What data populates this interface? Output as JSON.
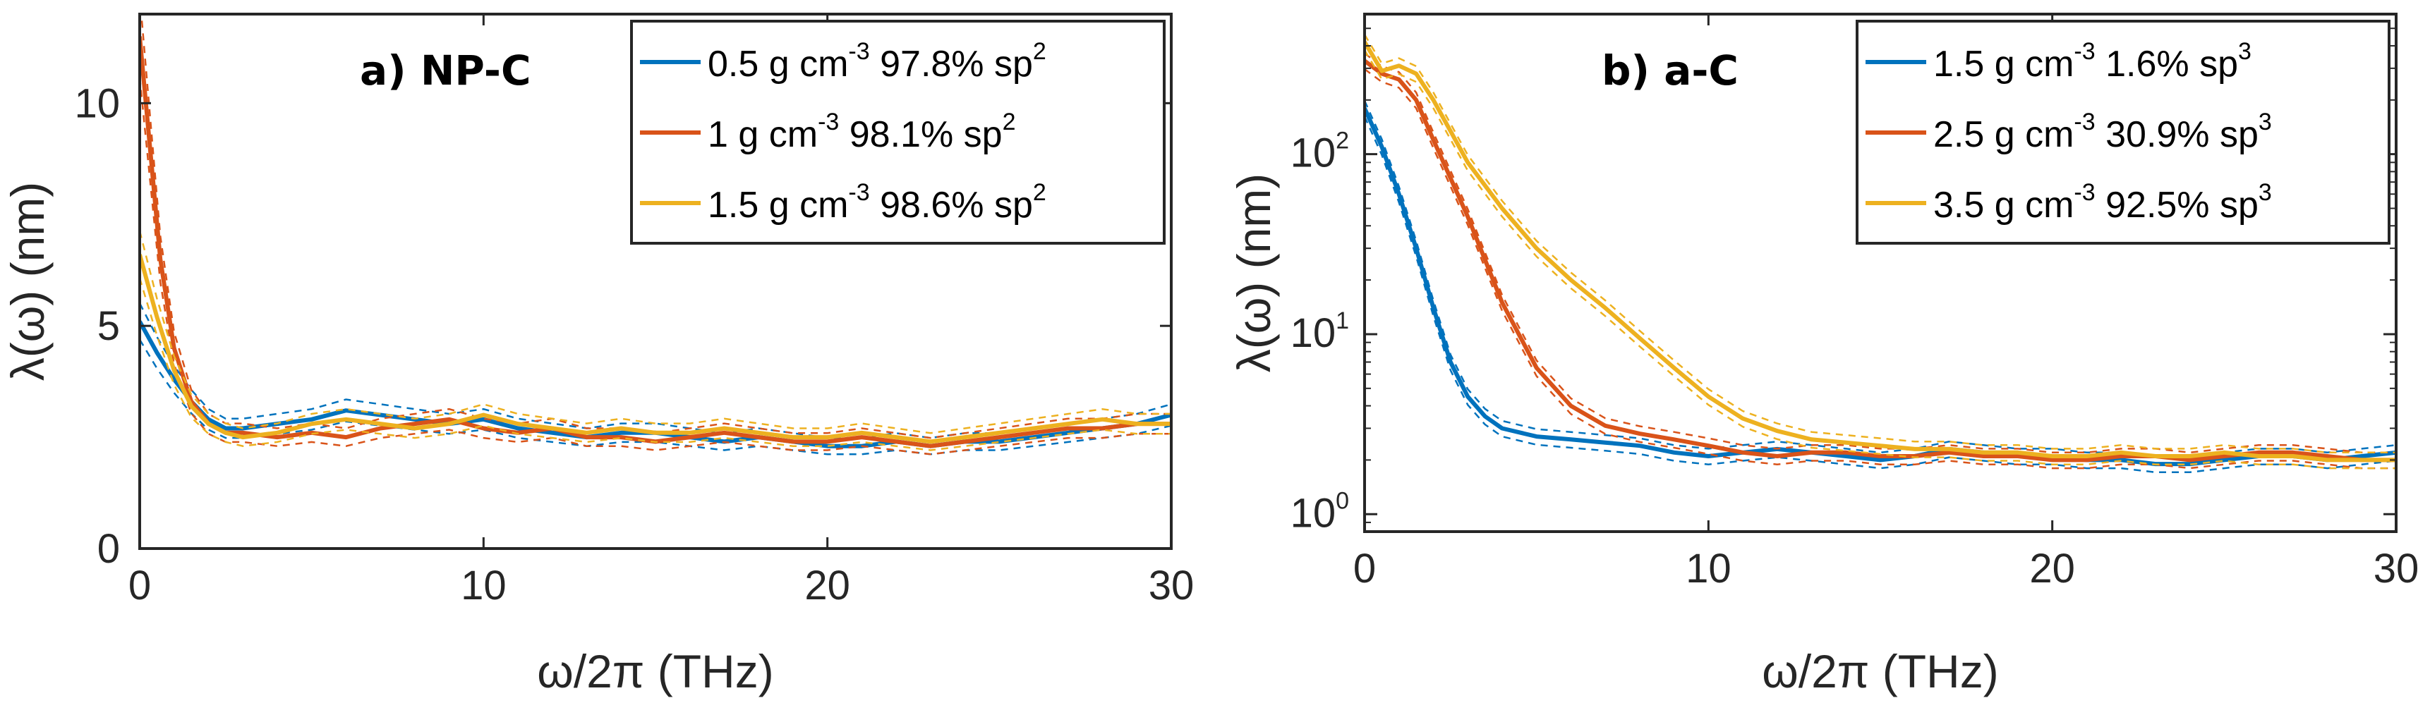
{
  "colors": {
    "blue": "#0072BD",
    "orange": "#D95319",
    "yellow": "#EDB120"
  },
  "chart_data": [
    {
      "type": "line",
      "title": "a) NP-C",
      "xlabel": "ω/2π (THz)",
      "ylabel": "λ(ω) (nm)",
      "xlim": [
        0,
        30
      ],
      "ylim": [
        0,
        12
      ],
      "yscale": "linear",
      "xticks": [
        "0",
        "10",
        "20",
        "30"
      ],
      "yticks": [
        "0",
        "5",
        "10"
      ],
      "legend": "top-right",
      "series": [
        {
          "name": "0.5 g cm-3 97.8% sp2",
          "label_main": "0.5 g cm",
          "label_sup": "-3",
          "label_rest": " 97.8% sp",
          "label_sup2": "2",
          "color": "#0072BD",
          "x": [
            0,
            0.5,
            1,
            1.5,
            2,
            2.5,
            3,
            4,
            5,
            6,
            7,
            8,
            9,
            10,
            11,
            12,
            13,
            14,
            15,
            16,
            17,
            18,
            19,
            20,
            21,
            22,
            23,
            24,
            25,
            26,
            27,
            28,
            29,
            30
          ],
          "y": [
            5.1,
            4.4,
            3.8,
            3.3,
            2.9,
            2.7,
            2.7,
            2.8,
            2.9,
            3.1,
            3.0,
            2.9,
            2.8,
            2.9,
            2.7,
            2.6,
            2.5,
            2.6,
            2.6,
            2.5,
            2.4,
            2.5,
            2.4,
            2.3,
            2.3,
            2.4,
            2.3,
            2.4,
            2.4,
            2.5,
            2.6,
            2.7,
            2.8,
            3.0
          ]
        },
        {
          "name": "1 g cm-3 98.1% sp2",
          "label_main": "1 g cm",
          "label_sup": "-3",
          "label_rest": " 98.1% sp",
          "label_sup2": "2",
          "color": "#D95319",
          "x": [
            0,
            0.3,
            0.6,
            1,
            1.5,
            2,
            2.5,
            3,
            4,
            5,
            6,
            7,
            8,
            9,
            10,
            11,
            12,
            13,
            14,
            15,
            16,
            17,
            18,
            19,
            20,
            21,
            22,
            23,
            24,
            25,
            26,
            27,
            28,
            29,
            30
          ],
          "y": [
            11.5,
            9.0,
            6.5,
            4.5,
            3.3,
            2.8,
            2.6,
            2.6,
            2.5,
            2.6,
            2.5,
            2.7,
            2.8,
            2.9,
            2.7,
            2.6,
            2.7,
            2.5,
            2.5,
            2.4,
            2.5,
            2.6,
            2.5,
            2.4,
            2.4,
            2.5,
            2.4,
            2.3,
            2.4,
            2.5,
            2.6,
            2.7,
            2.7,
            2.8,
            2.8
          ]
        },
        {
          "name": "1.5 g cm-3 98.6% sp2",
          "label_main": "1.5 g cm",
          "label_sup": "-3",
          "label_rest": " 98.6% sp",
          "label_sup2": "2",
          "color": "#EDB120",
          "x": [
            0,
            0.5,
            1,
            1.5,
            2,
            2.5,
            3,
            4,
            5,
            6,
            7,
            8,
            9,
            10,
            11,
            12,
            13,
            14,
            15,
            16,
            17,
            18,
            19,
            20,
            21,
            22,
            23,
            24,
            25,
            26,
            27,
            28,
            29,
            30
          ],
          "y": [
            6.6,
            5.2,
            4.0,
            3.2,
            2.8,
            2.6,
            2.5,
            2.6,
            2.8,
            2.9,
            2.8,
            2.7,
            2.8,
            3.0,
            2.8,
            2.7,
            2.6,
            2.7,
            2.6,
            2.6,
            2.7,
            2.6,
            2.5,
            2.5,
            2.6,
            2.5,
            2.4,
            2.5,
            2.6,
            2.7,
            2.8,
            2.9,
            2.8,
            2.8
          ]
        }
      ]
    },
    {
      "type": "line",
      "title": "b) a-C",
      "xlabel": "ω/2π (THz)",
      "ylabel": "λ(ω) (nm)",
      "xlim": [
        0,
        30
      ],
      "ylim": [
        0.8,
        600
      ],
      "yscale": "log",
      "xticks": [
        "0",
        "10",
        "20",
        "30"
      ],
      "yticks": [
        {
          "base": "10",
          "exp": "0",
          "value": 1
        },
        {
          "base": "10",
          "exp": "1",
          "value": 10
        },
        {
          "base": "10",
          "exp": "2",
          "value": 100
        }
      ],
      "legend": "top-right",
      "series": [
        {
          "name": "1.5 g cm-3 1.6% sp3",
          "label_main": "1.5 g cm",
          "label_sup": "-3",
          "label_rest": " 1.6% sp",
          "label_sup2": "3",
          "color": "#0072BD",
          "x": [
            0,
            0.5,
            1,
            1.5,
            2,
            2.5,
            3,
            3.5,
            4,
            5,
            6,
            7,
            8,
            9,
            10,
            11,
            12,
            13,
            14,
            15,
            16,
            17,
            18,
            19,
            20,
            21,
            22,
            23,
            24,
            25,
            26,
            27,
            28,
            29,
            30
          ],
          "y": [
            180,
            110,
            60,
            30,
            14,
            7,
            4.5,
            3.5,
            3.0,
            2.7,
            2.6,
            2.5,
            2.4,
            2.2,
            2.1,
            2.2,
            2.3,
            2.2,
            2.1,
            2.0,
            2.1,
            2.3,
            2.2,
            2.1,
            2.1,
            2.0,
            2.0,
            1.9,
            1.9,
            2.0,
            2.1,
            2.1,
            2.0,
            2.1,
            2.2
          ]
        },
        {
          "name": "2.5 g cm-3 30.9% sp3",
          "label_main": "2.5 g cm",
          "label_sup": "-3",
          "label_rest": " 30.9% sp",
          "label_sup2": "3",
          "color": "#D95319",
          "x": [
            0,
            0.5,
            1,
            1.5,
            2,
            3,
            4,
            5,
            6,
            7,
            8,
            9,
            10,
            11,
            12,
            13,
            14,
            15,
            16,
            17,
            18,
            19,
            20,
            21,
            22,
            23,
            24,
            25,
            26,
            27,
            28,
            29,
            30
          ],
          "y": [
            330,
            280,
            260,
            200,
            120,
            45,
            15,
            6.5,
            4.0,
            3.1,
            2.8,
            2.6,
            2.4,
            2.2,
            2.1,
            2.2,
            2.2,
            2.1,
            2.1,
            2.2,
            2.1,
            2.1,
            2.0,
            2.0,
            2.1,
            2.1,
            2.0,
            2.1,
            2.2,
            2.2,
            2.1,
            2.0,
            2.0
          ]
        },
        {
          "name": "3.5 g cm-3 92.5% sp3",
          "label_main": "3.5 g cm",
          "label_sup": "-3",
          "label_rest": " 92.5% sp",
          "label_sup2": "3",
          "color": "#EDB120",
          "x": [
            0,
            0.5,
            1,
            1.5,
            2,
            3,
            4,
            5,
            6,
            7,
            8,
            9,
            10,
            11,
            12,
            13,
            14,
            15,
            16,
            17,
            18,
            19,
            20,
            21,
            22,
            23,
            24,
            25,
            26,
            27,
            28,
            29,
            30
          ],
          "y": [
            420,
            290,
            310,
            280,
            200,
            90,
            50,
            30,
            20,
            14,
            9.5,
            6.5,
            4.5,
            3.4,
            2.9,
            2.6,
            2.5,
            2.4,
            2.3,
            2.3,
            2.2,
            2.2,
            2.1,
            2.1,
            2.2,
            2.1,
            2.1,
            2.2,
            2.1,
            2.1,
            2.0,
            2.0,
            2.0
          ]
        }
      ]
    }
  ]
}
